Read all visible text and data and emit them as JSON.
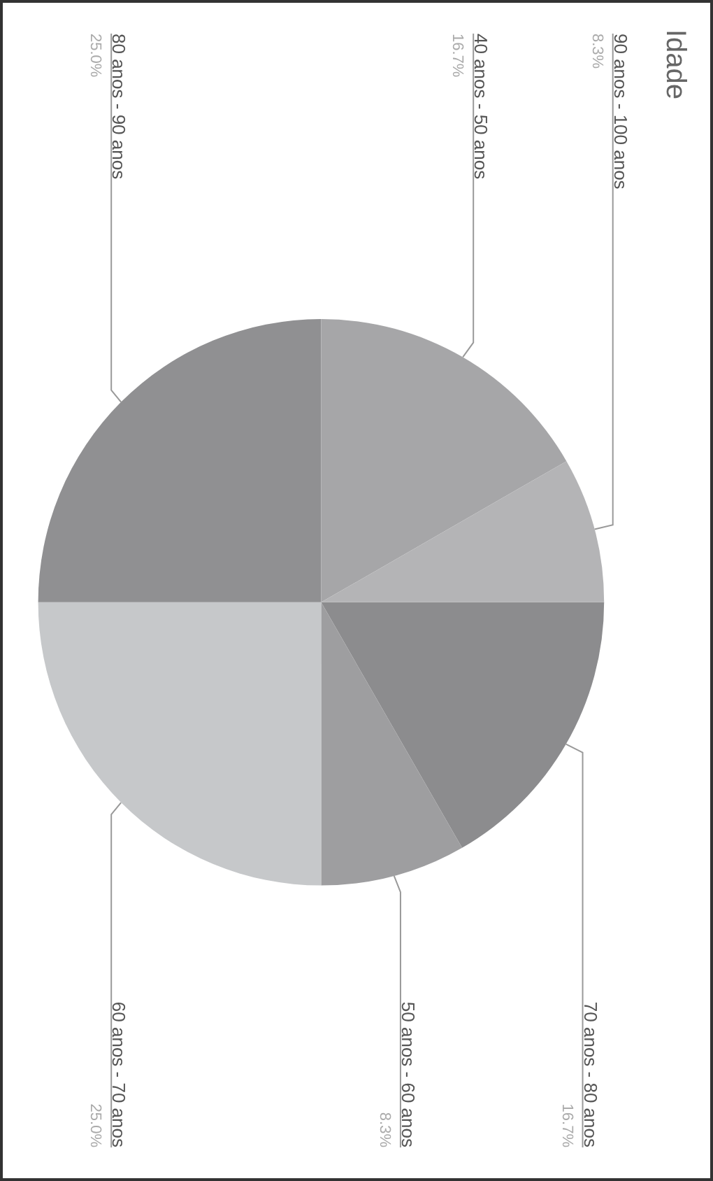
{
  "chart_data": {
    "type": "pie",
    "title": "Idade",
    "categories": [
      "70 anos - 80 anos",
      "50 anos - 60 anos",
      "60 anos - 70 anos",
      "80 anos - 90 anos",
      "40 anos - 50 anos",
      "90 anos - 100 anos"
    ],
    "values": [
      16.7,
      8.3,
      25.0,
      25.0,
      16.7,
      8.3
    ],
    "value_labels": [
      "16.7%",
      "8.3%",
      "25.0%",
      "25.0%",
      "16.7%",
      "8.3%"
    ],
    "colors": [
      "#8c8c8e",
      "#9e9ea0",
      "#c6c8ca",
      "#909092",
      "#a6a6a8",
      "#b4b4b6"
    ]
  }
}
